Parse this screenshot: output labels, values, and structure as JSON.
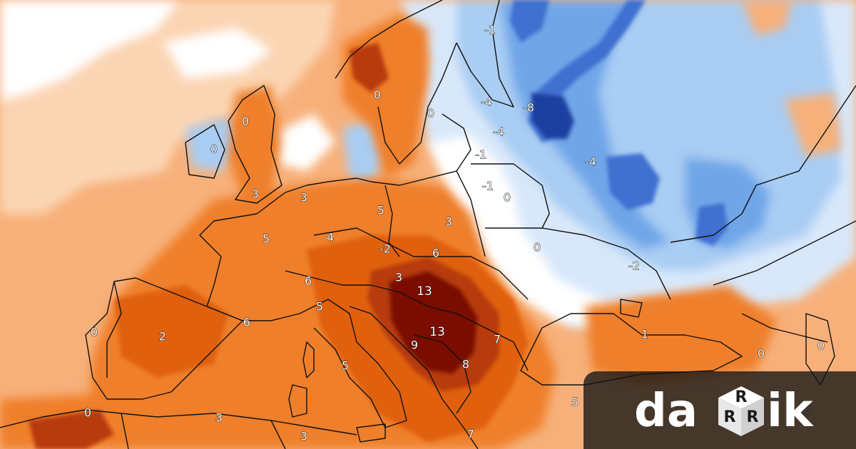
{
  "map": {
    "colors": {
      "warm_pale": "#fbd5b3",
      "warm_light": "#f7b07a",
      "warm_mid": "#ef7f2c",
      "warm_strong": "#e0600f",
      "warm_deep": "#b83a0c",
      "warm_extreme": "#7a0a06",
      "neutral": "#ffffff",
      "cool_pale": "#d8e8fa",
      "cool_light": "#a9cdf3",
      "cool_mid": "#6fa6e8",
      "cool_strong": "#3f6fd0",
      "cool_deep": "#1c3fa0",
      "border": "#111111"
    },
    "labels": [
      {
        "id": "label-neg1-finland",
        "text": "-1"
      },
      {
        "id": "label-0-norway",
        "text": "0"
      },
      {
        "id": "label-0-scandinavia",
        "text": "0"
      },
      {
        "id": "label-neg4-baltic",
        "text": "-4"
      },
      {
        "id": "label-neg8-russia",
        "text": "-8"
      },
      {
        "id": "label-neg4-estonia",
        "text": "-4"
      },
      {
        "id": "label-0-scotland",
        "text": "0"
      },
      {
        "id": "label-0-ireland",
        "text": "0"
      },
      {
        "id": "label-neg1-lithuania",
        "text": "-1"
      },
      {
        "id": "label-neg4-russia",
        "text": "-4"
      },
      {
        "id": "label-neg1-belarus-west",
        "text": "-1"
      },
      {
        "id": "label-0-belarus",
        "text": "0"
      },
      {
        "id": "label-3-england",
        "text": "3"
      },
      {
        "id": "label-3-benelux",
        "text": "3"
      },
      {
        "id": "label-5-germany",
        "text": "5"
      },
      {
        "id": "label-3-poland",
        "text": "3"
      },
      {
        "id": "label-5-france",
        "text": "5"
      },
      {
        "id": "label-4-germany-south",
        "text": "4"
      },
      {
        "id": "label-neg2-czechia",
        "text": "-2"
      },
      {
        "id": "label-6-poland-south",
        "text": "6"
      },
      {
        "id": "label-0-ukraine",
        "text": "0"
      },
      {
        "id": "label-neg2-ukraine",
        "text": "-2"
      },
      {
        "id": "label-6-switzerland",
        "text": "6"
      },
      {
        "id": "label-3-austria",
        "text": "3"
      },
      {
        "id": "label-13-hungary",
        "text": "13"
      },
      {
        "id": "label-5-italy-north",
        "text": "5"
      },
      {
        "id": "label-0-portugal",
        "text": "0"
      },
      {
        "id": "label-2-spain",
        "text": "2"
      },
      {
        "id": "label-6-france-south",
        "text": "6"
      },
      {
        "id": "label-13-serbia",
        "text": "13"
      },
      {
        "id": "label-7-romania",
        "text": "7"
      },
      {
        "id": "label-1-black-sea",
        "text": "1"
      },
      {
        "id": "label-9-bosnia",
        "text": "9"
      },
      {
        "id": "label-8-bulgaria",
        "text": "8"
      },
      {
        "id": "label-5-italy",
        "text": "5"
      },
      {
        "id": "label-0-caucasus",
        "text": "0"
      },
      {
        "id": "label-0-caspian",
        "text": "0"
      },
      {
        "id": "label-0-morocco",
        "text": "0"
      },
      {
        "id": "label-3-algeria",
        "text": "3"
      },
      {
        "id": "label-3-tunisia",
        "text": "3"
      },
      {
        "id": "label-7-greece",
        "text": "7"
      },
      {
        "id": "label-5-turkey",
        "text": "5"
      },
      {
        "id": "label-2-east",
        "text": "2"
      }
    ]
  },
  "logo": {
    "text_prefix": "da",
    "text_suffix": "ik",
    "cube_letter": "R",
    "colors": {
      "text": "#ffffff",
      "cube": "#ffffff",
      "cube_letter": "#1a1a1a",
      "panel": "#141414"
    }
  }
}
